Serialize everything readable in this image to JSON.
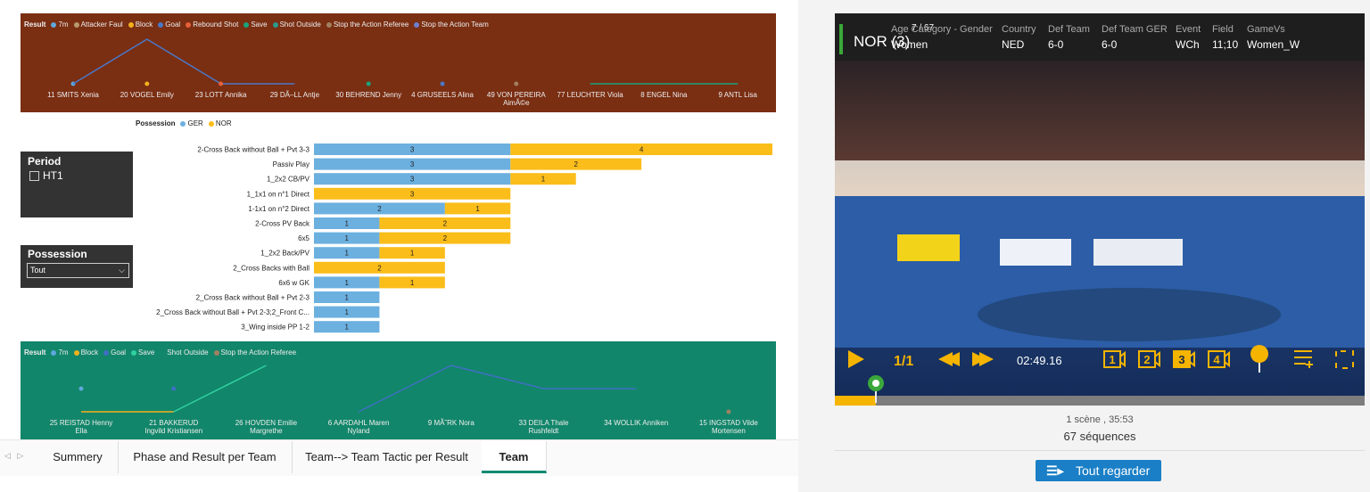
{
  "top_chart": {
    "type": "line",
    "legend_title": "Result",
    "categories": [
      "11 SMITS Xenia",
      "20 VOGEL Emily",
      "23 LOTT Annika",
      "29 DÃ–LL Antje",
      "30 BEHREND Jenny",
      "4 GRUSEELS Alina",
      "49 VON PEREIRA AimÃ©e",
      "77 LEUCHTER Viola",
      "8 ENGEL Nina",
      "9 ANTL Lisa"
    ],
    "ylim": [
      1,
      2
    ],
    "series": [
      {
        "name": "7m",
        "color": "#5fa8dc",
        "values": [
          1,
          null,
          null,
          null,
          null,
          null,
          null,
          null,
          null,
          null
        ]
      },
      {
        "name": "Attacker Faul",
        "color": "#b99a70",
        "values": [
          null,
          null,
          null,
          null,
          null,
          null,
          null,
          null,
          null,
          null
        ]
      },
      {
        "name": "Block",
        "color": "#f2b01e",
        "values": [
          null,
          1,
          null,
          null,
          null,
          null,
          null,
          null,
          null,
          null
        ]
      },
      {
        "name": "Goal",
        "color": "#4a78c8",
        "values": [
          1,
          2,
          1,
          1,
          null,
          1,
          null,
          null,
          null,
          null
        ]
      },
      {
        "name": "Rebound Shot",
        "color": "#e8613a",
        "values": [
          null,
          null,
          1,
          null,
          null,
          null,
          null,
          null,
          null,
          null
        ]
      },
      {
        "name": "Save",
        "color": "#1aa37a",
        "values": [
          null,
          null,
          null,
          null,
          1,
          null,
          null,
          1,
          1,
          1
        ]
      },
      {
        "name": "Shot Outside",
        "color": "#2b9a8a",
        "values": [
          null,
          null,
          null,
          null,
          null,
          null,
          null,
          null,
          null,
          null
        ]
      },
      {
        "name": "Stop the Action Referee",
        "color": "#a08060",
        "values": [
          null,
          null,
          null,
          null,
          null,
          null,
          1,
          null,
          null,
          null
        ]
      },
      {
        "name": "Stop the Action Team",
        "color": "#6d7fcf",
        "values": [
          null,
          null,
          null,
          null,
          null,
          null,
          null,
          null,
          null,
          null
        ]
      }
    ]
  },
  "possession_chart": {
    "type": "bar",
    "legend_title": "Possession",
    "xlim": [
      0,
      7
    ],
    "categories": [
      "2-Cross Back without Ball + Pvt 3-3",
      "Passiv Play",
      "1_2x2 CB/PV",
      "1_1x1 on n°1 Direct",
      "1-1x1 on n°2 Direct",
      "2-Cross PV Back",
      "6x5",
      "1_2x2 Back/PV",
      "2_Cross Backs with Ball",
      "6x6 w GK",
      "2_Cross Back without Ball + Pvt 2-3",
      "2_Cross Back without Ball + Pvt 2-3;2_Front C...",
      "3_Wing inside PP 1-2"
    ],
    "series": [
      {
        "name": "GER",
        "color": "#6cb0e0",
        "values": [
          3,
          3,
          3,
          null,
          2,
          1,
          1,
          1,
          null,
          1,
          1,
          1,
          1
        ]
      },
      {
        "name": "NOR",
        "color": "#fbbd1a",
        "values": [
          4,
          2,
          1,
          3,
          1,
          2,
          2,
          1,
          2,
          1,
          null,
          null,
          null
        ]
      }
    ]
  },
  "bottom_chart": {
    "type": "line",
    "legend_title": "Result",
    "categories": [
      "25 REISTAD Henny Ella",
      "21 BAKKERUD Ingvild Kristiansen",
      "26 HOVDEN Emilie Margrethe",
      "6 AARDAHL Maren Nyland",
      "9 MÃ˜RK Nora",
      "33 DEILA Thale Rushfeldt",
      "34 WOLLIK Anniken",
      "15 INGSTAD Vilde Mortensen"
    ],
    "ylim": [
      1,
      3
    ],
    "series": [
      {
        "name": "7m",
        "color": "#5fa8dc",
        "values": [
          2,
          null,
          null,
          null,
          null,
          null,
          null,
          null
        ]
      },
      {
        "name": "Block",
        "color": "#f2b01e",
        "values": [
          1,
          1,
          null,
          null,
          null,
          null,
          null,
          null
        ]
      },
      {
        "name": "Goal",
        "color": "#3f6fc4",
        "values": [
          null,
          2,
          null,
          1,
          3,
          2,
          2,
          null
        ]
      },
      {
        "name": "Save",
        "color": "#2fd0a0",
        "values": [
          null,
          1,
          3,
          null,
          null,
          null,
          null,
          null
        ]
      },
      {
        "name": "Shot Outside",
        "color": "#12866a",
        "values": [
          null,
          null,
          null,
          null,
          null,
          null,
          null,
          null
        ]
      },
      {
        "name": "Stop the Action Referee",
        "color": "#a08060",
        "values": [
          null,
          null,
          null,
          null,
          null,
          null,
          null,
          1
        ]
      }
    ]
  },
  "filters": {
    "period": {
      "title": "Period",
      "option": "HT1"
    },
    "possession": {
      "title": "Possession",
      "selected": "Tout"
    }
  },
  "tabs": [
    "Summery",
    "Phase and Result per Team",
    "Team--> Team Tactic per Result",
    "Team"
  ],
  "player": {
    "title": "NOR (3)",
    "counter": "7 / 67",
    "fields": [
      {
        "label": "Age Category - Gender",
        "value": "Women"
      },
      {
        "label": "Country",
        "value": "NED"
      },
      {
        "label": "Def Team",
        "value": "6-0"
      },
      {
        "label": "Def Team GER",
        "value": "6-0"
      },
      {
        "label": "Event",
        "value": "WCh"
      },
      {
        "label": "Field",
        "value": "11;10"
      },
      {
        "label": "GameVs",
        "value": "Women_W"
      }
    ],
    "speed": "1/1",
    "time": "02:49.16",
    "cameras": [
      "1",
      "2",
      "3",
      "4"
    ],
    "scene_info": "1 scène , 35:53",
    "sequences": "67 séquences",
    "watch_all": "Tout regarder"
  }
}
